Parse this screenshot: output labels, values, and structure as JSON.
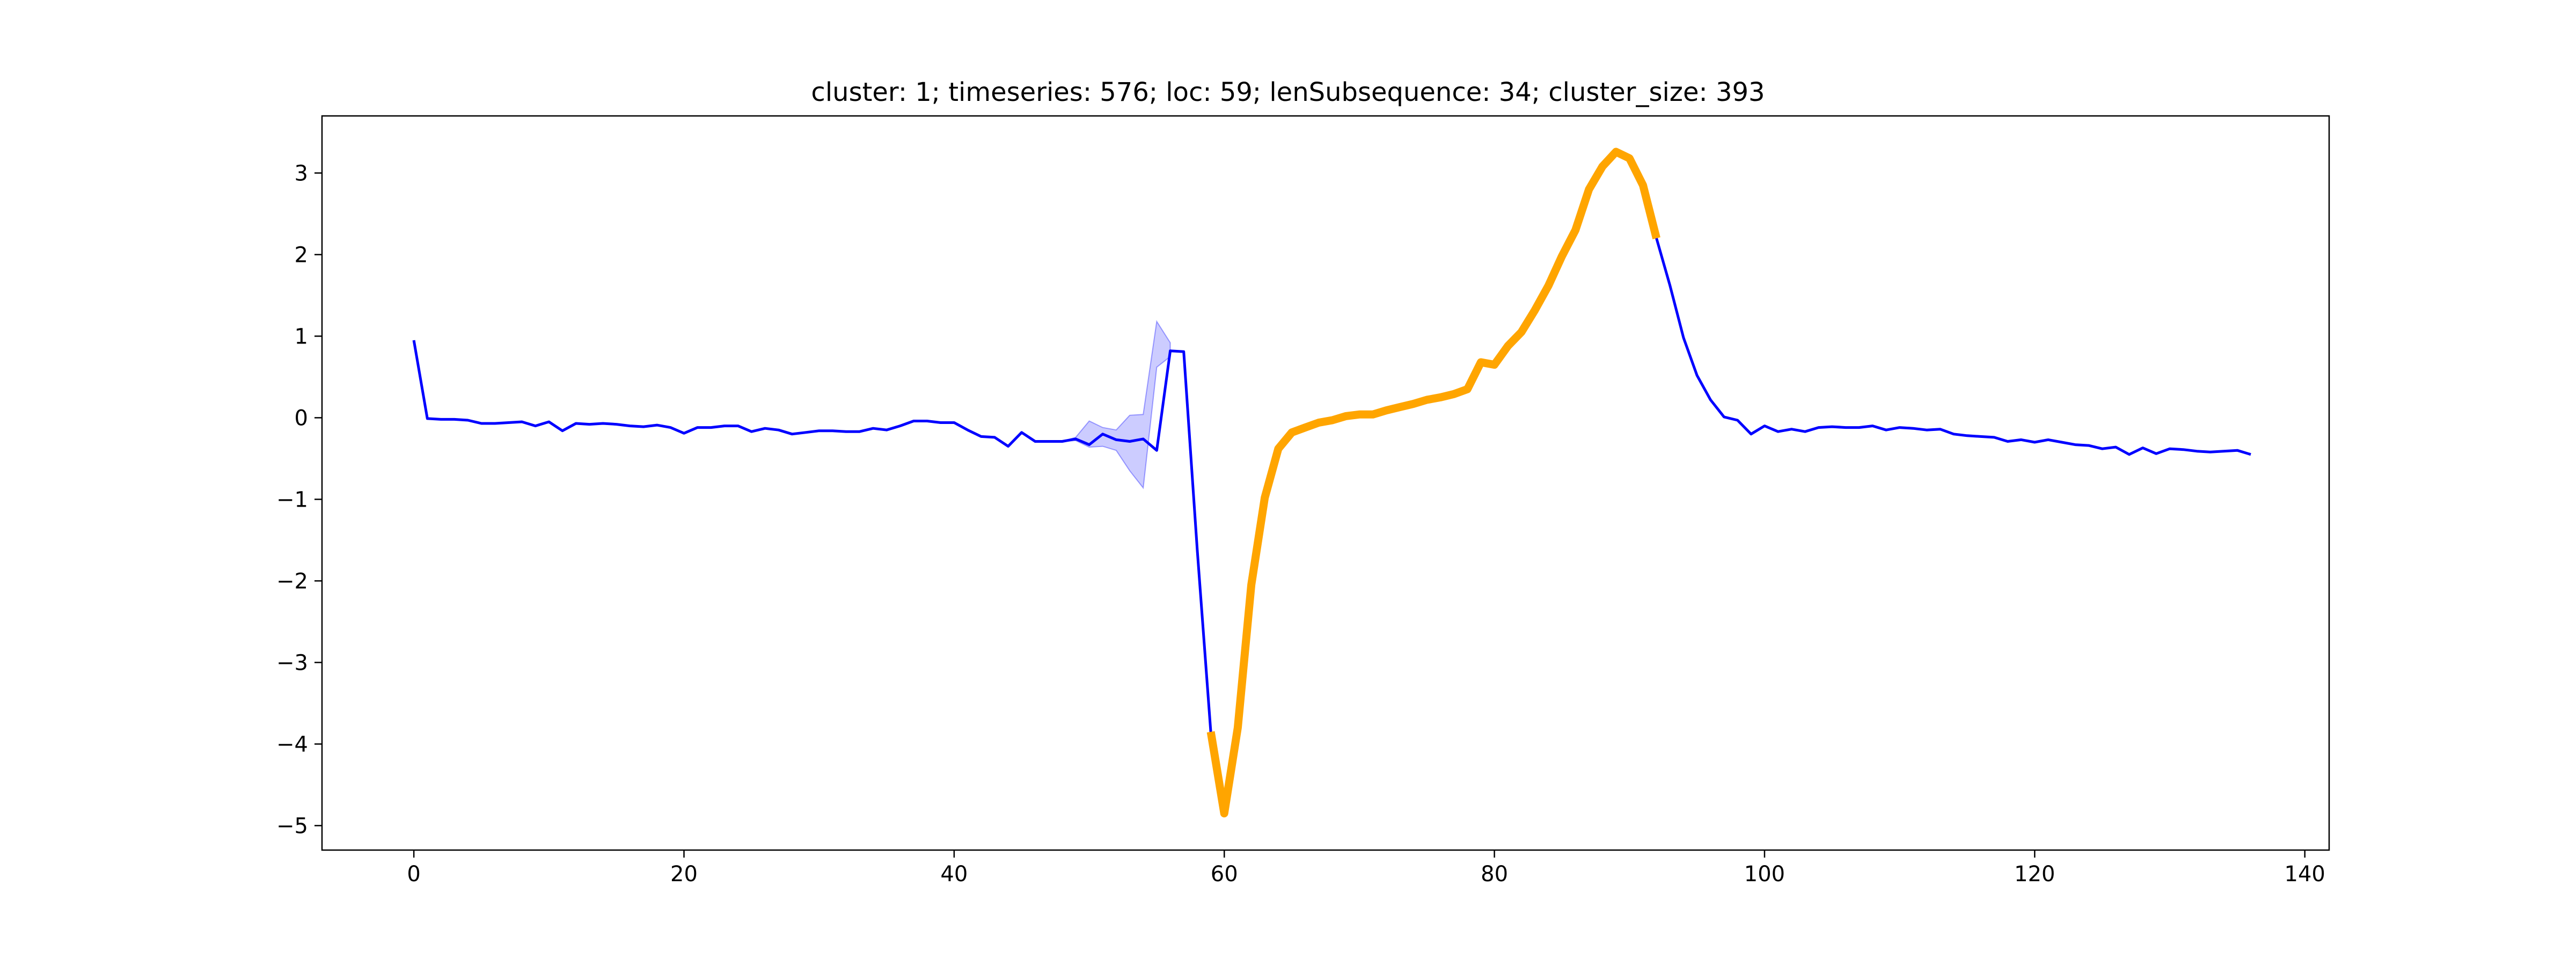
{
  "chart_data": {
    "type": "line",
    "title": "cluster: 1; timeseries: 576; loc: 59; lenSubsequence: 34; cluster_size: 393",
    "xlabel": "",
    "ylabel": "",
    "xlim": [
      -6.8,
      141.8
    ],
    "ylim": [
      -5.3,
      3.7
    ],
    "grid": false,
    "legend": "none",
    "x_ticks": [
      0,
      20,
      40,
      60,
      80,
      100,
      120,
      140
    ],
    "x_tick_labels": [
      "0",
      "20",
      "40",
      "60",
      "80",
      "100",
      "120",
      "140"
    ],
    "y_ticks": [
      -5,
      -4,
      -3,
      -2,
      -1,
      0,
      1,
      2,
      3
    ],
    "y_tick_labels": [
      "−5",
      "−4",
      "−3",
      "−2",
      "−1",
      "0",
      "1",
      "2",
      "3"
    ],
    "colors": {
      "series": "#0000ff",
      "band": "#0000ff",
      "highlight": "#ffa500"
    },
    "series": [
      {
        "x_start": 0,
        "values": [
          0.95,
          -0.01,
          -0.02,
          -0.02,
          -0.03,
          -0.07,
          -0.07,
          -0.06,
          -0.05,
          -0.1,
          -0.05,
          -0.16,
          -0.07,
          -0.08,
          -0.07,
          -0.08,
          -0.1,
          -0.11,
          -0.09,
          -0.12,
          -0.19,
          -0.12,
          -0.12,
          -0.1,
          -0.1,
          -0.17,
          -0.13,
          -0.15,
          -0.2,
          -0.18,
          -0.16,
          -0.16,
          -0.17,
          -0.17,
          -0.13,
          -0.15,
          -0.1,
          -0.04,
          -0.04,
          -0.06,
          -0.06,
          -0.15,
          -0.23,
          -0.24,
          -0.35,
          -0.18,
          -0.29,
          -0.29,
          -0.29,
          -0.26,
          -0.33,
          -0.2,
          -0.27,
          -0.29,
          -0.26,
          -0.4,
          0.82,
          0.81,
          -1.62,
          -3.85,
          -4.85,
          -3.8,
          -2.05,
          -0.98,
          -0.38,
          -0.18,
          -0.12,
          -0.06,
          -0.03,
          0.02,
          0.04,
          0.04,
          0.09,
          0.13,
          0.17,
          0.22,
          0.25,
          0.29,
          0.35,
          0.68,
          0.65,
          0.88,
          1.05,
          1.32,
          1.62,
          1.98,
          2.3,
          2.8,
          3.08,
          3.26,
          3.18,
          2.85,
          2.2,
          1.62,
          0.98,
          0.52,
          0.22,
          0.01,
          -0.03,
          -0.2,
          -0.1,
          -0.17,
          -0.14,
          -0.17,
          -0.12,
          -0.11,
          -0.12,
          -0.12,
          -0.1,
          -0.15,
          -0.12,
          -0.13,
          -0.15,
          -0.14,
          -0.2,
          -0.22,
          -0.23,
          -0.24,
          -0.29,
          -0.27,
          -0.3,
          -0.27,
          -0.3,
          -0.33,
          -0.34,
          -0.38,
          -0.36,
          -0.45,
          -0.37,
          -0.44,
          -0.38,
          -0.39,
          -0.41,
          -0.42,
          -0.41,
          -0.4,
          -0.45
        ]
      }
    ],
    "band": {
      "x": [
        48,
        49,
        50,
        51,
        52,
        53,
        54,
        55,
        56
      ],
      "lower": [
        -0.29,
        -0.28,
        -0.36,
        -0.35,
        -0.4,
        -0.65,
        -0.86,
        0.62,
        0.75
      ],
      "upper": [
        -0.29,
        -0.24,
        -0.04,
        -0.12,
        -0.15,
        0.03,
        0.04,
        1.18,
        0.92
      ]
    },
    "highlight": {
      "start": 59,
      "length": 34
    }
  }
}
